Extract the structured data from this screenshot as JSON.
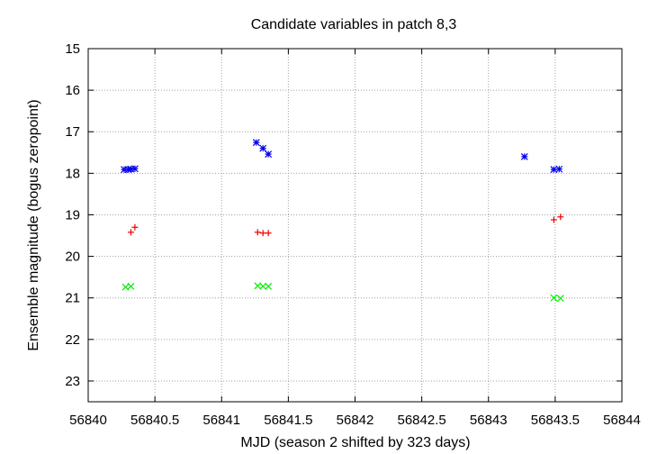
{
  "chart_data": {
    "type": "scatter",
    "title": "Candidate variables in patch 8,3",
    "xlabel": "MJD (season 2 shifted by 323 days)",
    "ylabel": "Ensemble magnitude (bogus zeropoint)",
    "xlim": [
      56840,
      56844
    ],
    "ylim": [
      23.5,
      15
    ],
    "y_inverted": true,
    "grid": true,
    "legend": "none",
    "xticks": [
      "56840",
      "56840.5",
      "56841",
      "56841.5",
      "56842",
      "56842.5",
      "56843",
      "56843.5",
      "56844"
    ],
    "yticks": [
      "15",
      "16",
      "17",
      "18",
      "19",
      "20",
      "21",
      "22",
      "23"
    ],
    "series": [
      {
        "color": "#0000ee",
        "marker": "star",
        "points": [
          [
            56840.27,
            17.91
          ],
          [
            56840.3,
            17.91
          ],
          [
            56840.32,
            17.9
          ],
          [
            56840.35,
            17.89
          ],
          [
            56841.26,
            17.26
          ],
          [
            56841.31,
            17.4
          ],
          [
            56841.35,
            17.54
          ],
          [
            56843.27,
            17.6
          ],
          [
            56843.49,
            17.91
          ],
          [
            56843.53,
            17.9
          ]
        ]
      },
      {
        "color": "#ee0000",
        "marker": "plus",
        "points": [
          [
            56840.32,
            19.42
          ],
          [
            56840.35,
            19.3
          ],
          [
            56841.27,
            19.42
          ],
          [
            56841.31,
            19.44
          ],
          [
            56841.35,
            19.44
          ],
          [
            56843.49,
            19.12
          ],
          [
            56843.54,
            19.05
          ]
        ]
      },
      {
        "color": "#00ee00",
        "marker": "cross",
        "points": [
          [
            56840.28,
            20.74
          ],
          [
            56840.32,
            20.72
          ],
          [
            56841.27,
            20.71
          ],
          [
            56841.31,
            20.72
          ],
          [
            56841.35,
            20.72
          ],
          [
            56843.49,
            21.0
          ],
          [
            56843.54,
            21.01
          ]
        ]
      }
    ]
  }
}
